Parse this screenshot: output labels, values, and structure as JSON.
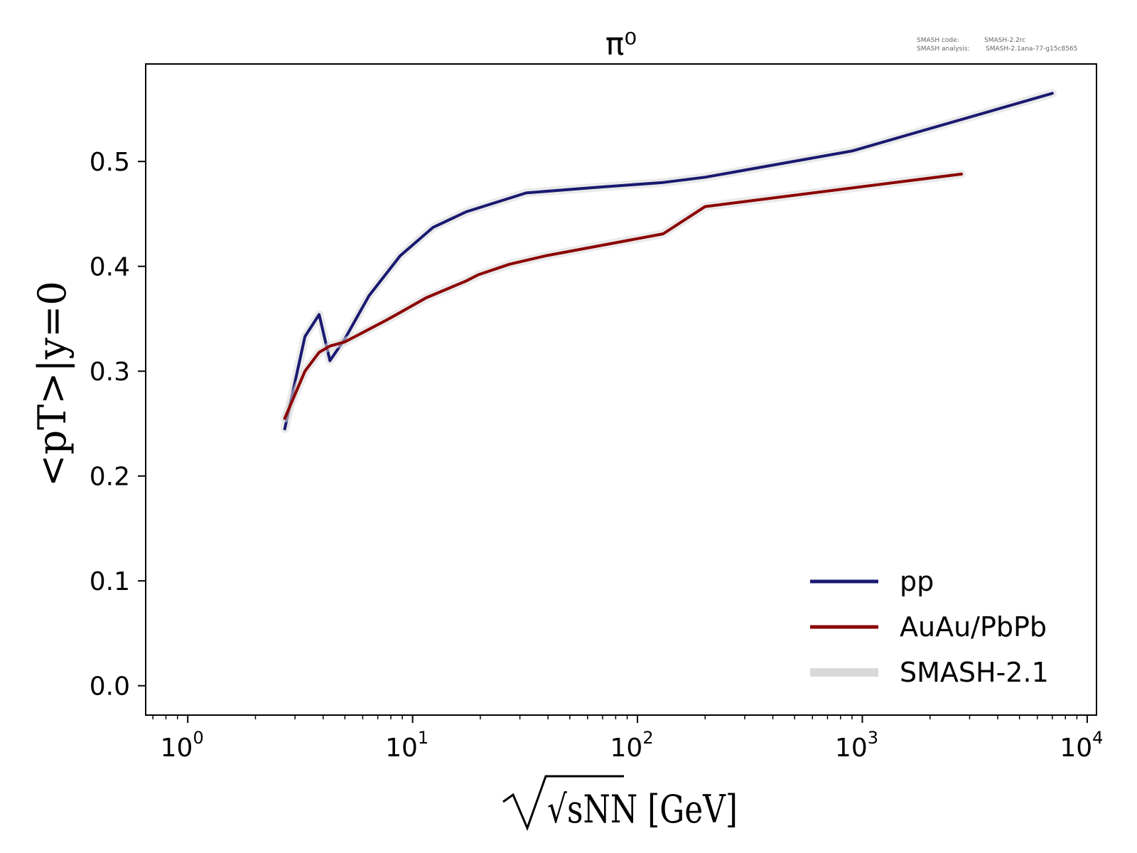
{
  "chart_data": {
    "type": "line",
    "title": "π⁰",
    "xlabel": "√sNN [GeV]",
    "ylabel": "<pT>|y=0",
    "xscale": "log",
    "xlim": [
      0.65,
      11000
    ],
    "ylim": [
      -0.028,
      0.593
    ],
    "xticks": [
      {
        "base": "10",
        "exp": "0",
        "value": 1
      },
      {
        "base": "10",
        "exp": "1",
        "value": 10
      },
      {
        "base": "10",
        "exp": "2",
        "value": 100
      },
      {
        "base": "10",
        "exp": "3",
        "value": 1000
      },
      {
        "base": "10",
        "exp": "4",
        "value": 10000
      }
    ],
    "yticks": [
      "0.0",
      "0.1",
      "0.2",
      "0.3",
      "0.4",
      "0.5"
    ],
    "grid": false,
    "legend_position": "bottom-right",
    "legend": [
      {
        "label": "pp",
        "color": "#191970"
      },
      {
        "label": "AuAu/PbPb",
        "color": "#8b0000"
      },
      {
        "label": "SMASH-2.1",
        "color": "#d9d9d9"
      }
    ],
    "series": [
      {
        "name": "pp",
        "color": "#191970",
        "x": [
          2.7,
          3.32,
          3.84,
          4.29,
          5.0,
          6.4,
          8.8,
          12.3,
          17.3,
          32.0,
          62.4,
          130,
          200,
          900,
          7000
        ],
        "y": [
          0.245,
          0.333,
          0.354,
          0.31,
          0.331,
          0.372,
          0.41,
          0.437,
          0.452,
          0.47,
          0.475,
          0.48,
          0.485,
          0.51,
          0.565
        ]
      },
      {
        "name": "AuAu/PbPb",
        "color": "#8b0000",
        "x": [
          2.7,
          3.32,
          3.84,
          4.29,
          5.0,
          6.4,
          7.7,
          8.8,
          11.5,
          17.3,
          19.6,
          27,
          39,
          130,
          200,
          2760
        ],
        "y": [
          0.255,
          0.3,
          0.318,
          0.324,
          0.328,
          0.34,
          0.349,
          0.356,
          0.37,
          0.386,
          0.392,
          0.402,
          0.41,
          0.431,
          0.457,
          0.488
        ]
      }
    ],
    "band": {
      "name": "SMASH-2.1",
      "color": "#d9d9d9",
      "opacity": 0.55
    }
  },
  "meta": {
    "code_label": "SMASH code:",
    "code_value": "SMASH-2.2rc",
    "analysis_label": "SMASH analysis:",
    "analysis_value": "SMASH-2.1ana-77-g15c8565"
  }
}
